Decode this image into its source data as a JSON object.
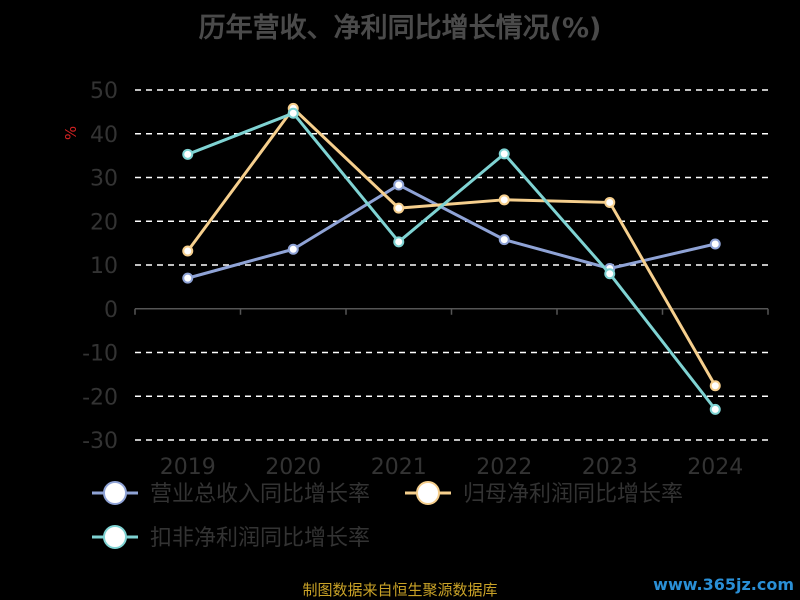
{
  "title": "历年营收、净利同比增长情况(%)",
  "source_note": "制图数据来自恒生聚源数据库",
  "watermark": "www.365jz.com",
  "chart_data": {
    "type": "line",
    "ylabel": "%",
    "ylim": [
      -30,
      50
    ],
    "yticks": [
      50,
      40,
      30,
      20,
      10,
      0,
      -10,
      -20,
      -30
    ],
    "grid": true,
    "legend_position": "bottom",
    "categories": [
      "2019",
      "2020",
      "2021",
      "2022",
      "2023",
      "2024"
    ],
    "series": [
      {
        "name": "营业总收入同比增长率",
        "color": "#8fa3d6",
        "values": [
          7.0,
          13.6,
          28.3,
          15.8,
          9.2,
          14.8
        ]
      },
      {
        "name": "归母净利润同比增长率",
        "color": "#f6cf8d",
        "values": [
          13.2,
          45.8,
          23.0,
          24.9,
          24.3,
          -17.6
        ]
      },
      {
        "name": "扣非净利润同比增长率",
        "color": "#7fd3d3",
        "values": [
          35.3,
          44.7,
          15.3,
          35.4,
          8.0,
          -23.0
        ]
      }
    ]
  }
}
